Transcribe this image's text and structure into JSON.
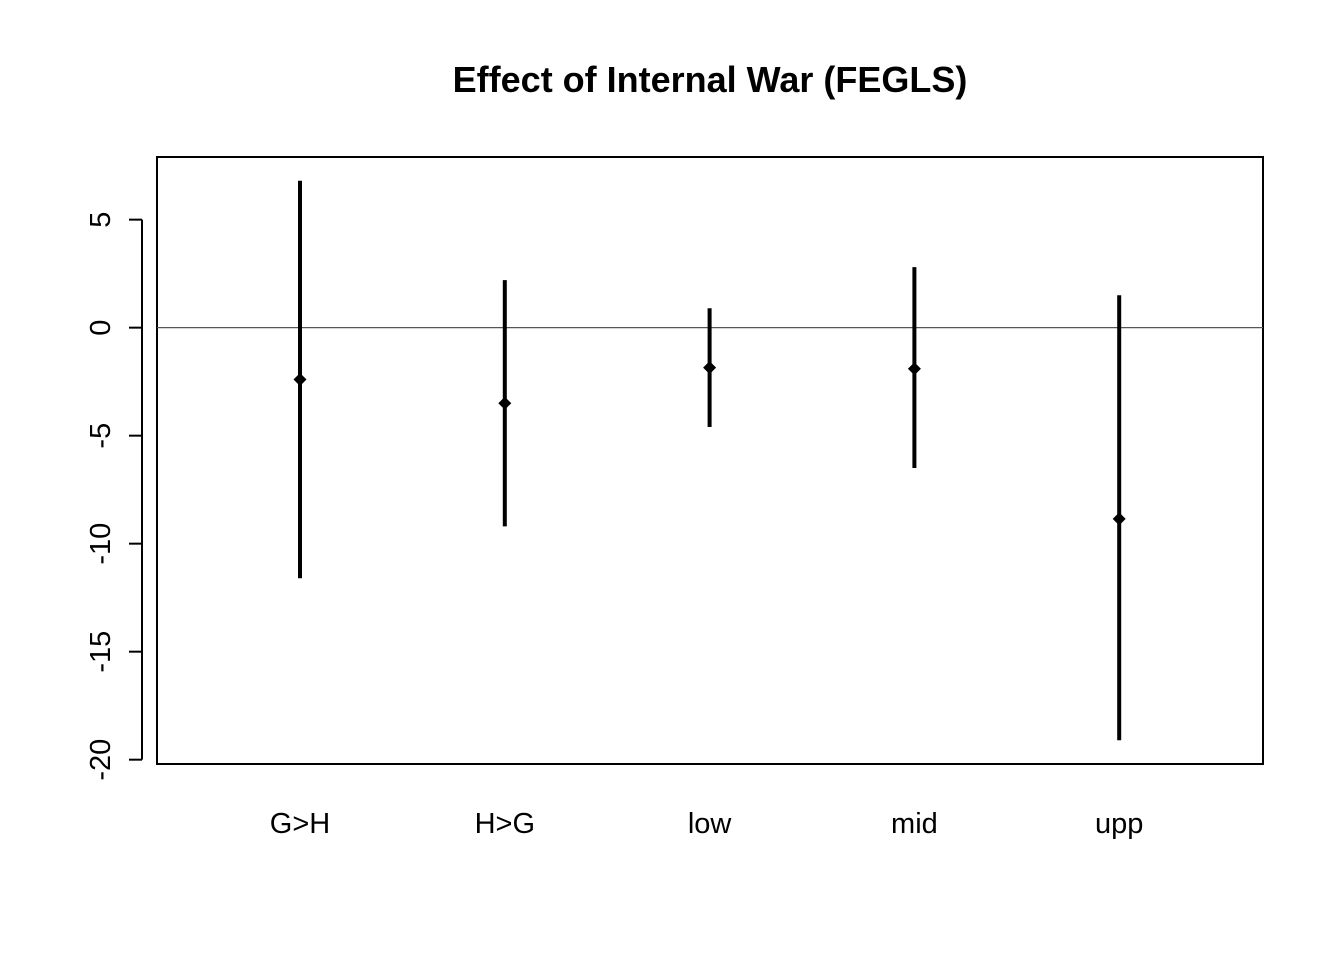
{
  "chart_data": {
    "type": "scatter",
    "title": "Effect of Internal War (FEGLS)",
    "xlabel": "",
    "ylabel": "",
    "categories": [
      "G>H",
      "H>G",
      "low",
      "mid",
      "upp"
    ],
    "estimates": [
      -2.4,
      -3.5,
      -1.85,
      -1.9,
      -8.85
    ],
    "lower": [
      -11.6,
      -9.2,
      -4.6,
      -6.5,
      -19.1
    ],
    "upper": [
      6.8,
      2.2,
      0.9,
      2.8,
      1.5
    ],
    "ylim": [
      -20.2,
      7.9
    ],
    "yticks": [
      5,
      0,
      -5,
      -10,
      -15,
      -20
    ],
    "reference_line": 0,
    "grid": false,
    "legend": "none",
    "colors": {
      "marks": "#000000",
      "reference": "#555555"
    }
  }
}
